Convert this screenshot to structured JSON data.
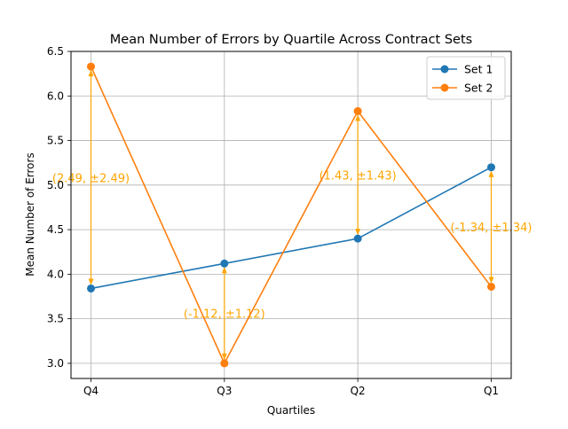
{
  "chart_data": {
    "type": "line",
    "title": "Mean Number of Errors by Quartile Across Contract Sets",
    "xlabel": "Quartiles",
    "ylabel": "Mean Number of Errors",
    "categories": [
      "Q4",
      "Q3",
      "Q2",
      "Q1"
    ],
    "ylim": [
      2.83,
      6.5
    ],
    "yticks": [
      3.0,
      3.5,
      4.0,
      4.5,
      5.0,
      5.5,
      6.0,
      6.5
    ],
    "ytick_labels": [
      "3.0",
      "3.5",
      "4.0",
      "4.5",
      "5.0",
      "5.5",
      "6.0",
      "6.5"
    ],
    "grid": true,
    "legend_position": "top-right",
    "series": [
      {
        "name": "Set 1",
        "color": "#1f77b4",
        "values": [
          3.84,
          4.12,
          4.4,
          5.2
        ]
      },
      {
        "name": "Set 2",
        "color": "#ff7f0e",
        "values": [
          6.33,
          3.0,
          5.83,
          3.86
        ]
      }
    ],
    "annotations": [
      {
        "category": "Q4",
        "from": 3.84,
        "to": 6.33,
        "text": "(2.49, ±2.49)"
      },
      {
        "category": "Q3",
        "from": 4.12,
        "to": 3.0,
        "text": "(-1.12, ±1.12)"
      },
      {
        "category": "Q2",
        "from": 4.4,
        "to": 5.83,
        "text": "(1.43, ±1.43)"
      },
      {
        "category": "Q1",
        "from": 5.2,
        "to": 3.86,
        "text": "(-1.34, ±1.34)"
      }
    ],
    "annotation_color": "#ffa500"
  }
}
